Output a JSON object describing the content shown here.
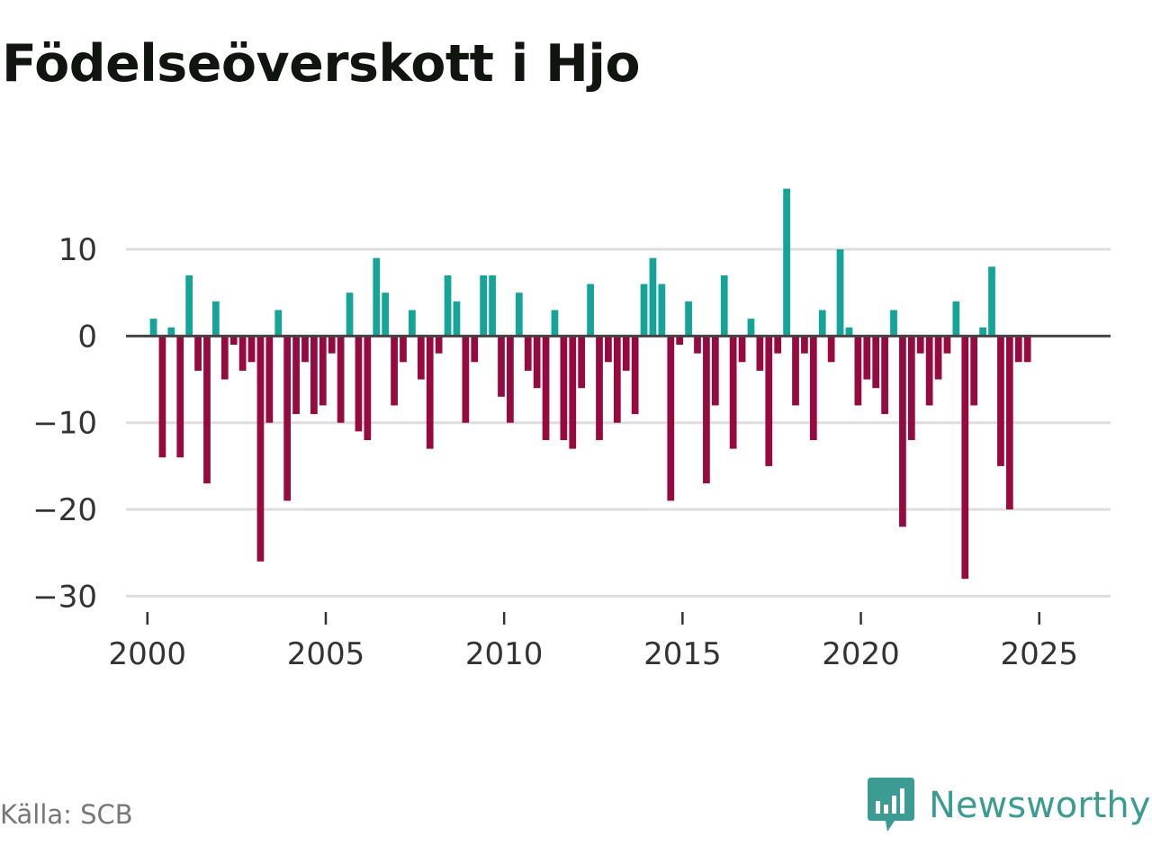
{
  "chart_data": {
    "type": "bar",
    "title": "Födelseöverskott i Hjo",
    "xlabel": "",
    "ylabel": "",
    "ylim": [
      -31,
      18
    ],
    "yticks": [
      10,
      0,
      -10,
      -20,
      -30
    ],
    "ytick_labels": [
      "10",
      "0",
      "−10",
      "−20",
      "−30"
    ],
    "xlim": [
      1999.4,
      2027.0
    ],
    "xticks": [
      2000,
      2005,
      2010,
      2015,
      2020,
      2025
    ],
    "xtick_labels": [
      "2000",
      "2005",
      "2010",
      "2015",
      "2020",
      "2025"
    ],
    "x_start": 2000.17,
    "x_step": 0.25,
    "values": [
      2,
      -14,
      1,
      -14,
      7,
      -4,
      -17,
      4,
      -5,
      -1,
      -4,
      -3,
      -26,
      -10,
      3,
      -19,
      -9,
      -3,
      -9,
      -8,
      -2,
      -10,
      5,
      -11,
      -12,
      9,
      5,
      -8,
      -3,
      3,
      -5,
      -13,
      -2,
      7,
      4,
      -10,
      -3,
      7,
      7,
      -7,
      -10,
      5,
      -4,
      -6,
      -12,
      3,
      -12,
      -13,
      -6,
      6,
      -12,
      -3,
      -10,
      -4,
      -9,
      6,
      9,
      6,
      -19,
      -1,
      4,
      -2,
      -17,
      -8,
      7,
      -13,
      -3,
      2,
      -4,
      -15,
      -2,
      17,
      -8,
      -2,
      -12,
      3,
      -3,
      10,
      1,
      -8,
      -5,
      -6,
      -9,
      3,
      -22,
      -12,
      -2,
      -8,
      -5,
      -2,
      4,
      -28,
      -8,
      1,
      8,
      -15,
      -20,
      -3,
      -3
    ],
    "positive_color": "#14a49a",
    "negative_color": "#960a3f",
    "grid": true
  },
  "footer": {
    "source": "Källa: SCB",
    "brand": "Newsworthy",
    "brand_color": "#3c9b92",
    "brand_icon": "newsworthy-logo-icon"
  }
}
